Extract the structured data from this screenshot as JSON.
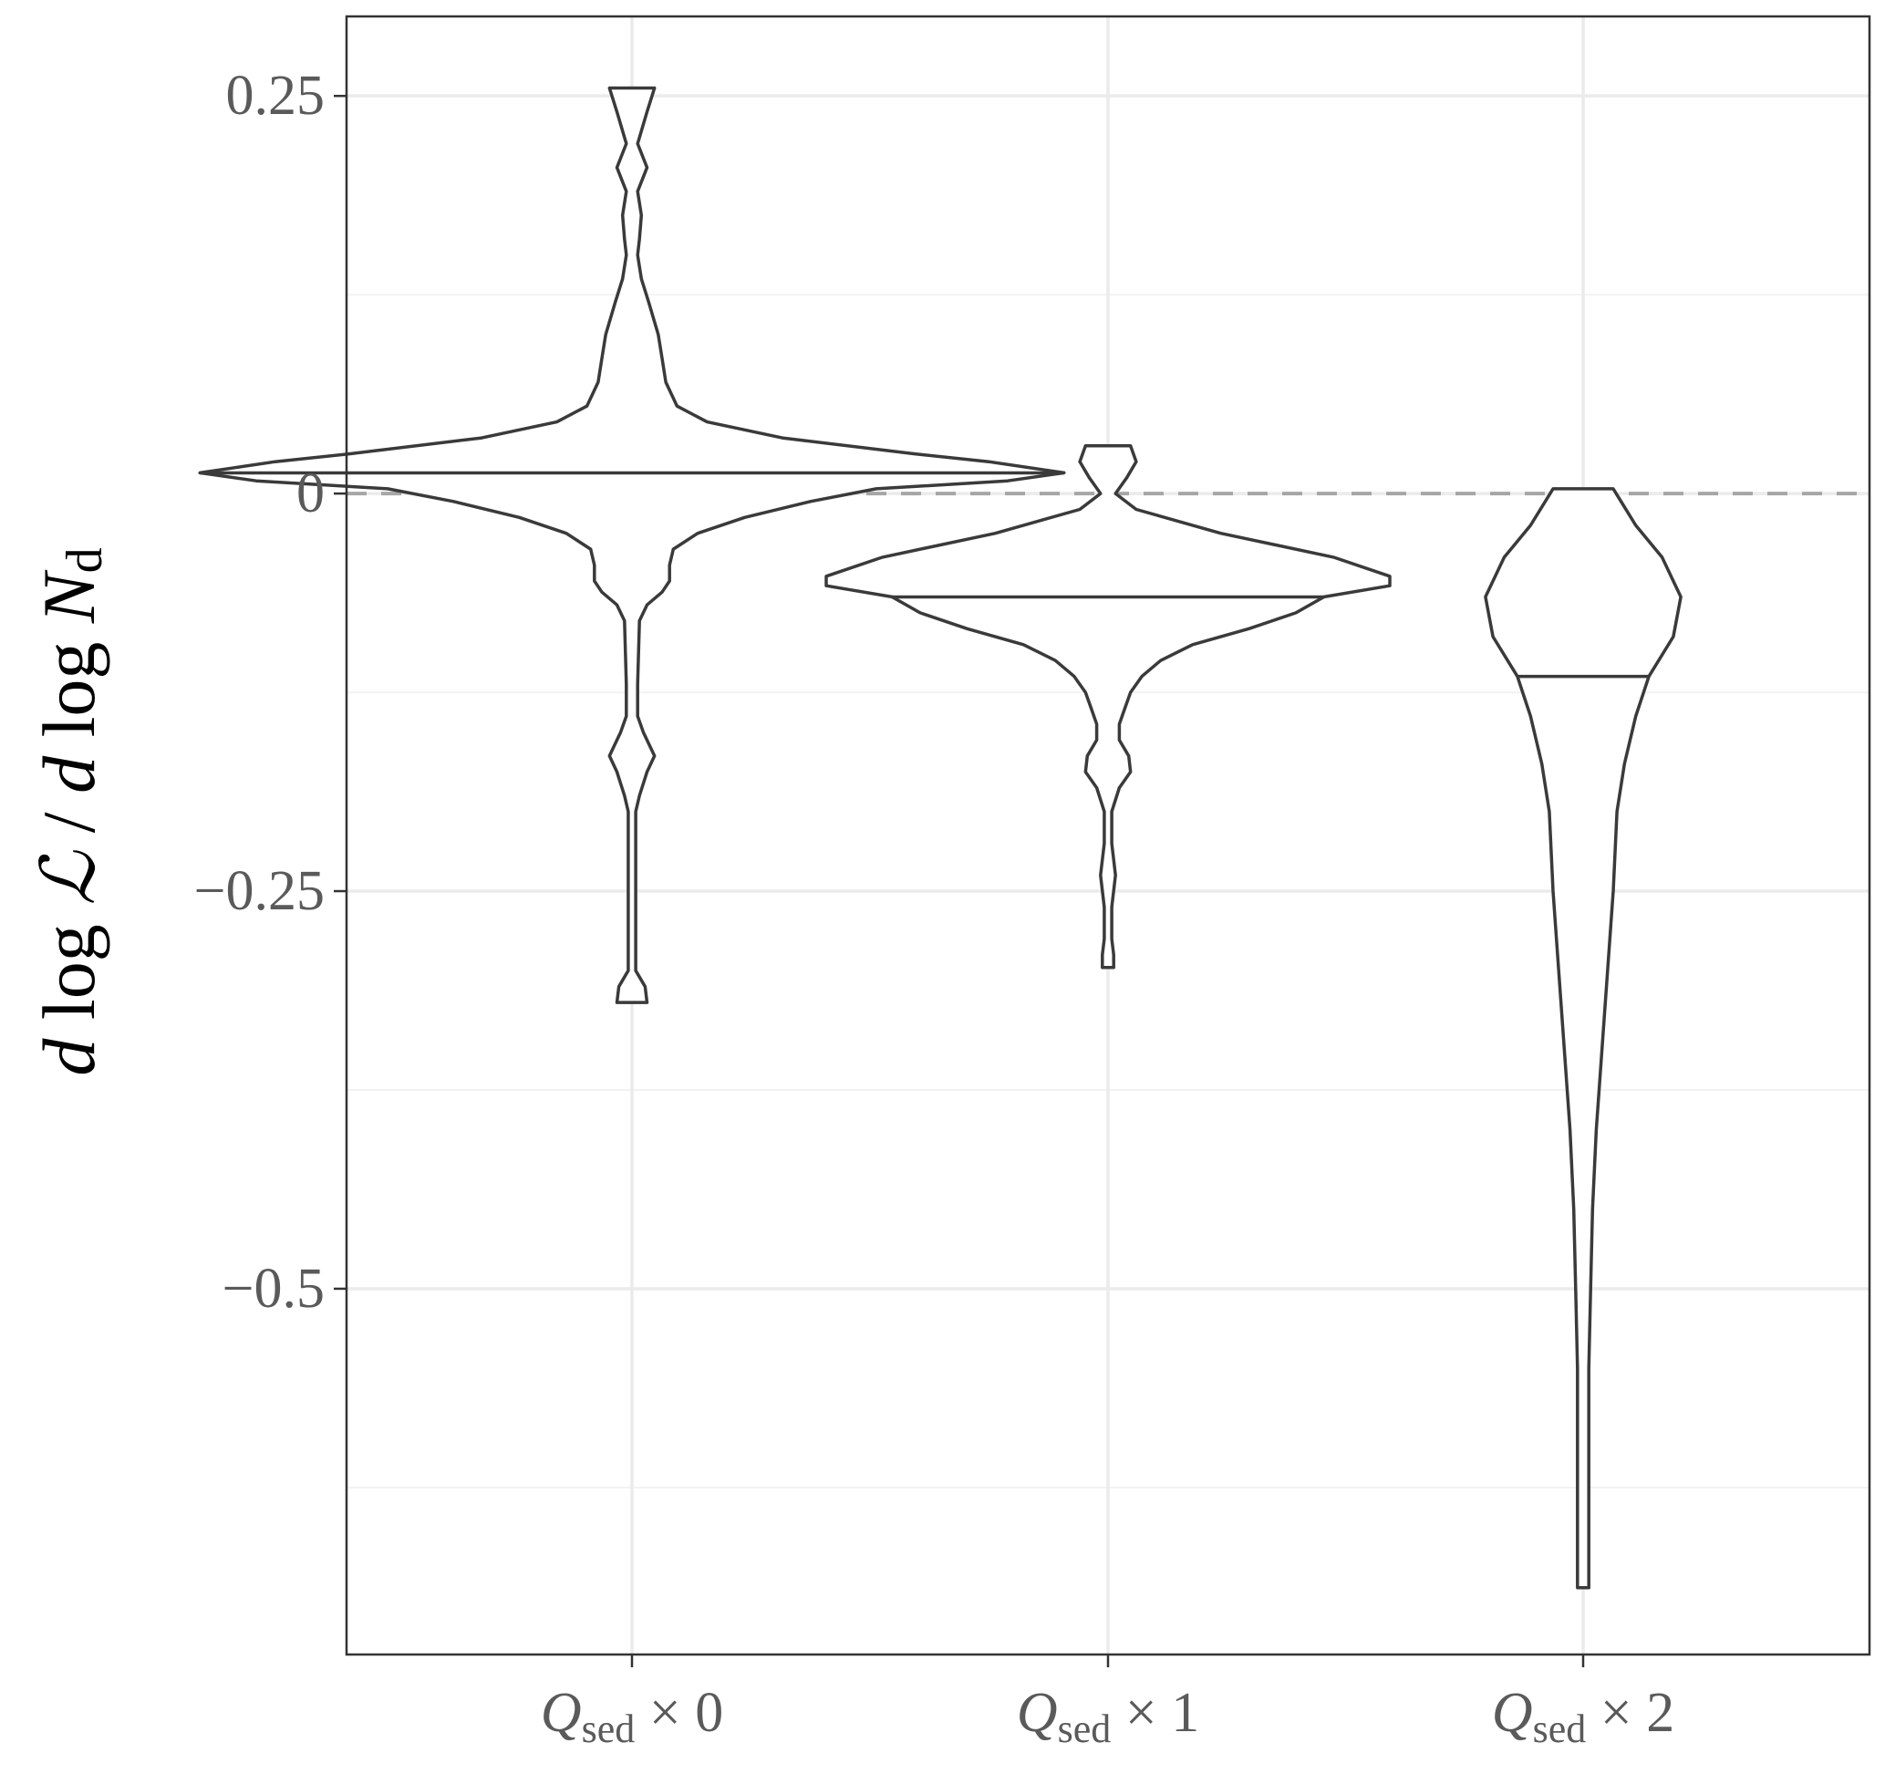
{
  "chart_data": {
    "type": "violin",
    "ylabel_parts": {
      "d1": "d",
      "log1": "log",
      "L": "ℒ",
      "slash": "/",
      "d2": "d",
      "log2": "log",
      "N": "N",
      "sub": "d"
    },
    "ylim": [
      -0.73,
      0.3
    ],
    "yticks": [
      0.25,
      0,
      -0.25,
      -0.5
    ],
    "ytick_labels": [
      "0.25",
      "0",
      "−0.25",
      "−0.5"
    ],
    "reference_line": 0,
    "grid": true,
    "categories": [
      {
        "q": "Q",
        "sub": "sed",
        "times": "×",
        "mult": "0"
      },
      {
        "q": "Q",
        "sub": "sed",
        "times": "×",
        "mult": "1"
      },
      {
        "q": "Q",
        "sub": "sed",
        "times": "×",
        "mult": "2"
      }
    ],
    "violins": [
      {
        "median": 0.013,
        "profile": [
          [
            0.255,
            0.012
          ],
          [
            0.24,
            0.008
          ],
          [
            0.22,
            0.003
          ],
          [
            0.205,
            0.008
          ],
          [
            0.19,
            0.003
          ],
          [
            0.175,
            0.005
          ],
          [
            0.16,
            0.004
          ],
          [
            0.15,
            0.003
          ],
          [
            0.135,
            0.005
          ],
          [
            0.12,
            0.009
          ],
          [
            0.1,
            0.014
          ],
          [
            0.085,
            0.016
          ],
          [
            0.07,
            0.018
          ],
          [
            0.055,
            0.024
          ],
          [
            0.045,
            0.04
          ],
          [
            0.035,
            0.08
          ],
          [
            0.025,
            0.15
          ],
          [
            0.02,
            0.19
          ],
          [
            0.013,
            0.23
          ],
          [
            0.008,
            0.2
          ],
          [
            0.003,
            0.13
          ],
          [
            -0.005,
            0.095
          ],
          [
            -0.015,
            0.06
          ],
          [
            -0.025,
            0.035
          ],
          [
            -0.035,
            0.022
          ],
          [
            -0.045,
            0.02
          ],
          [
            -0.055,
            0.02
          ],
          [
            -0.062,
            0.016
          ],
          [
            -0.07,
            0.008
          ],
          [
            -0.08,
            0.004
          ],
          [
            -0.12,
            0.003
          ],
          [
            -0.14,
            0.003
          ],
          [
            -0.15,
            0.006
          ],
          [
            -0.165,
            0.012
          ],
          [
            -0.175,
            0.008
          ],
          [
            -0.19,
            0.004
          ],
          [
            -0.2,
            0.002
          ],
          [
            -0.25,
            0.002
          ],
          [
            -0.3,
            0.002
          ],
          [
            -0.31,
            0.007
          ],
          [
            -0.32,
            0.008
          ]
        ]
      },
      {
        "median": -0.065,
        "profile": [
          [
            0.03,
            0.012
          ],
          [
            0.02,
            0.015
          ],
          [
            0.01,
            0.01
          ],
          [
            0.0,
            0.004
          ],
          [
            -0.01,
            0.015
          ],
          [
            -0.025,
            0.06
          ],
          [
            -0.04,
            0.12
          ],
          [
            -0.052,
            0.15
          ],
          [
            -0.058,
            0.15
          ],
          [
            -0.065,
            0.115
          ],
          [
            -0.075,
            0.1
          ],
          [
            -0.085,
            0.075
          ],
          [
            -0.095,
            0.045
          ],
          [
            -0.105,
            0.028
          ],
          [
            -0.115,
            0.018
          ],
          [
            -0.125,
            0.012
          ],
          [
            -0.135,
            0.009
          ],
          [
            -0.145,
            0.006
          ],
          [
            -0.155,
            0.006
          ],
          [
            -0.165,
            0.011
          ],
          [
            -0.175,
            0.012
          ],
          [
            -0.185,
            0.006
          ],
          [
            -0.2,
            0.002
          ],
          [
            -0.22,
            0.002
          ],
          [
            -0.24,
            0.004
          ],
          [
            -0.26,
            0.002
          ],
          [
            -0.28,
            0.002
          ],
          [
            -0.29,
            0.003
          ],
          [
            -0.298,
            0.003
          ]
        ]
      },
      {
        "median": -0.115,
        "profile": [
          [
            0.003,
            0.016
          ],
          [
            -0.02,
            0.028
          ],
          [
            -0.04,
            0.042
          ],
          [
            -0.065,
            0.052
          ],
          [
            -0.09,
            0.048
          ],
          [
            -0.115,
            0.035
          ],
          [
            -0.14,
            0.028
          ],
          [
            -0.17,
            0.022
          ],
          [
            -0.2,
            0.018
          ],
          [
            -0.25,
            0.016
          ],
          [
            -0.3,
            0.013
          ],
          [
            -0.35,
            0.01
          ],
          [
            -0.4,
            0.007
          ],
          [
            -0.45,
            0.005
          ],
          [
            -0.5,
            0.004
          ],
          [
            -0.55,
            0.003
          ],
          [
            -0.6,
            0.003
          ],
          [
            -0.65,
            0.003
          ],
          [
            -0.688,
            0.003
          ]
        ]
      }
    ]
  }
}
